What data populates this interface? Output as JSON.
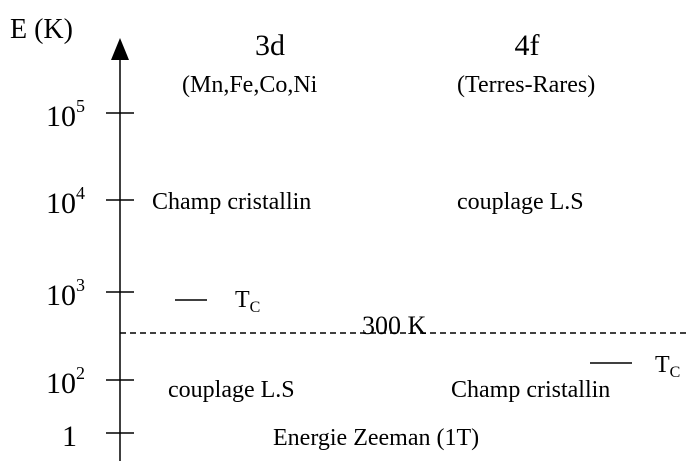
{
  "axis": {
    "label": "E (K)",
    "ticks": [
      {
        "base": "10",
        "exp": "5"
      },
      {
        "base": "10",
        "exp": "4"
      },
      {
        "base": "10",
        "exp": "3"
      },
      {
        "base": "10",
        "exp": "2"
      },
      {
        "base": "1"
      }
    ]
  },
  "columns": [
    {
      "title": "3d",
      "subtitle": "(Mn,Fe,Co,Ni",
      "upper": "Champ cristallin",
      "lower": "couplage L.S",
      "tc": {
        "symbol": "T",
        "subscript": "C"
      }
    },
    {
      "title": "4f",
      "subtitle": "(Terres-Rares)",
      "upper": "couplage L.S",
      "lower": "Champ cristallin",
      "tc": {
        "symbol": "T",
        "subscript": "C"
      }
    }
  ],
  "threshold": "300 K",
  "zeeman": "Energie Zeeman (1T)"
}
